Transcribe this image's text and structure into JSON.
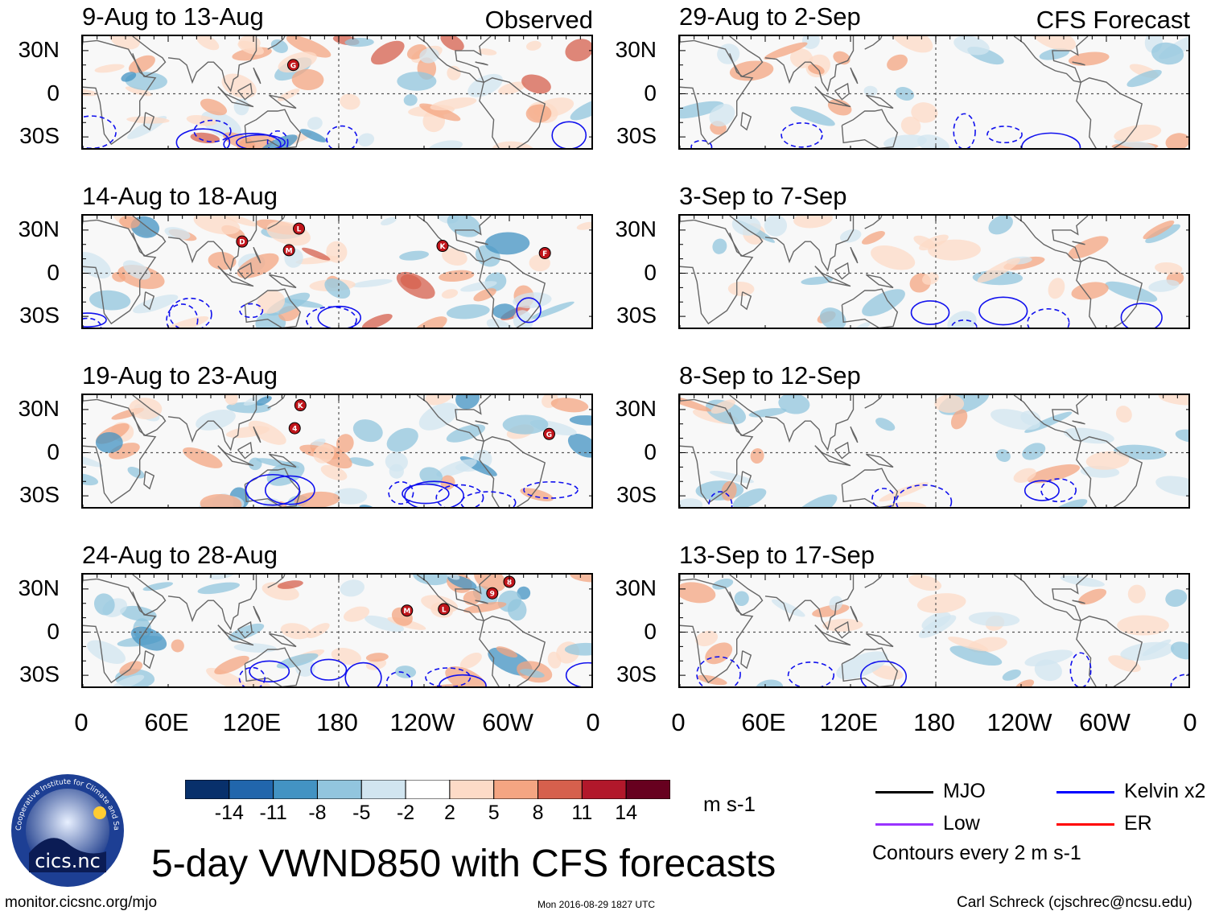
{
  "figure": {
    "title": "5-day VWND850 with CFS forecasts",
    "source": "monitor.cicsnc.org/mjo",
    "timestamp": "Mon 2016-08-29 1827 UTC",
    "author": "Carl Schreck (cjschrec@ncsu.edu)",
    "logo_text": "cics.nc",
    "logo_ring_text": "Cooperative Institute for Climate and Satellites"
  },
  "chart_data": {
    "type": "heatmap",
    "variable": "850-hPa meridional wind anomaly",
    "columns": [
      {
        "label": "Observed",
        "panels": [
          "9-Aug to 13-Aug",
          "14-Aug to 18-Aug",
          "19-Aug to 23-Aug",
          "24-Aug to 28-Aug"
        ]
      },
      {
        "label": "CFS Forecast",
        "panels": [
          "29-Aug to 2-Sep",
          "3-Sep to 7-Sep",
          "8-Sep to 12-Sep",
          "13-Sep to 17-Sep"
        ]
      }
    ],
    "y_ticks": [
      "30N",
      "0",
      "30S"
    ],
    "x_ticks": [
      "0",
      "60E",
      "120E",
      "180",
      "120W",
      "60W",
      "0"
    ],
    "lon_range": [
      0,
      360
    ],
    "lat_range": [
      -40,
      40
    ],
    "colorbar": {
      "colors": [
        "#08306b",
        "#2166ac",
        "#4393c3",
        "#92c5de",
        "#d1e5f0",
        "#ffffff",
        "#fddbc7",
        "#f4a582",
        "#d6604d",
        "#b2182b",
        "#67001f"
      ],
      "labels": [
        "-14",
        "-11",
        "-8",
        "-5",
        "-2",
        "2",
        "5",
        "8",
        "11",
        "14"
      ],
      "units": "m s-1"
    },
    "legend": [
      {
        "label": "MJO",
        "color": "#000000"
      },
      {
        "label": "Kelvin x2",
        "color": "#0000ff"
      },
      {
        "label": "Low",
        "color": "#9933ff"
      },
      {
        "label": "ER",
        "color": "#ff0000"
      }
    ],
    "contour_note": "Contours every 2 m s-1",
    "storm_markers": [
      [
        {
          "label": "G",
          "lon": 148,
          "lat": 20
        }
      ],
      [
        {
          "label": "D",
          "lon": 112,
          "lat": 22
        },
        {
          "label": "L",
          "lon": 152,
          "lat": 31
        },
        {
          "label": "M",
          "lon": 145,
          "lat": 16
        },
        {
          "label": "K",
          "lon": 253,
          "lat": 19
        },
        {
          "label": "F",
          "lon": 325,
          "lat": 14
        }
      ],
      [
        {
          "label": "K",
          "lon": 153,
          "lat": 33
        },
        {
          "label": "4",
          "lon": 149,
          "lat": 17
        },
        {
          "label": "G",
          "lon": 328,
          "lat": 13
        }
      ],
      [
        {
          "label": "M",
          "lon": 228,
          "lat": 15
        },
        {
          "label": "L",
          "lon": 254,
          "lat": 16
        },
        {
          "label": "9",
          "lon": 288,
          "lat": 27
        },
        {
          "label": "8",
          "lon": 300,
          "lat": 35
        }
      ],
      [],
      [],
      [],
      []
    ]
  }
}
